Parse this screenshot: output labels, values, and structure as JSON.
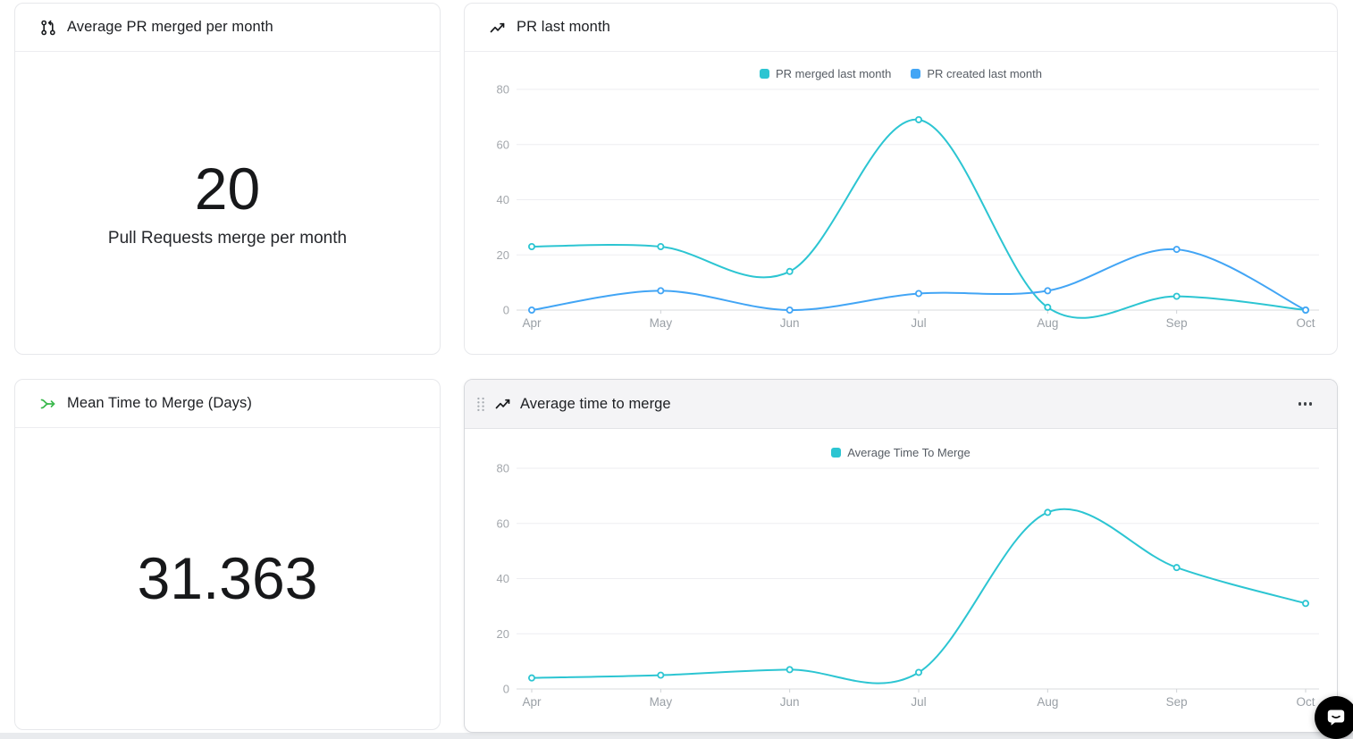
{
  "cards": {
    "avg_pr_merged": {
      "title": "Average PR merged per month",
      "icon": "git-pull-request-icon",
      "value": "20",
      "caption": "Pull Requests merge per month"
    },
    "pr_last_month": {
      "title": "PR last month",
      "icon": "trending-line-icon"
    },
    "mean_time_to_merge": {
      "title": "Mean Time to Merge (Days)",
      "icon": "merge-arrow-icon",
      "icon_color": "#3cb94e",
      "value": "31.363"
    },
    "average_time_to_merge": {
      "title": "Average time to merge",
      "icon": "trending-line-icon",
      "drag_handle": "drag-handle-dots-icon",
      "menu": "ellipsis-menu-icon"
    }
  },
  "chart_data": [
    {
      "type": "line",
      "title": "PR last month",
      "categories": [
        "Apr",
        "May",
        "Jun",
        "Jul",
        "Aug",
        "Sep",
        "Oct"
      ],
      "series": [
        {
          "name": "PR merged last month",
          "color": "#2cc5d2",
          "values": [
            23,
            23,
            14,
            69,
            1,
            5,
            0
          ]
        },
        {
          "name": "PR created last month",
          "color": "#42a5f5",
          "values": [
            0,
            7,
            0,
            6,
            7,
            22,
            0
          ]
        }
      ],
      "ylim": [
        0,
        80
      ],
      "yticks": [
        0,
        20,
        40,
        60,
        80
      ],
      "grid": true,
      "legend_position": "top",
      "smooth": true,
      "point_style": "open-circle"
    },
    {
      "type": "line",
      "title": "Average time to merge",
      "categories": [
        "Apr",
        "May",
        "Jun",
        "Jul",
        "Aug",
        "Sep",
        "Oct"
      ],
      "series": [
        {
          "name": "Average Time To Merge",
          "color": "#2cc5d2",
          "values": [
            4,
            5,
            7,
            6,
            64,
            44,
            31
          ]
        }
      ],
      "ylim": [
        0,
        80
      ],
      "yticks": [
        0,
        20,
        40,
        60,
        80
      ],
      "grid": true,
      "legend_position": "top",
      "smooth": true,
      "point_style": "open-circle"
    }
  ],
  "colors": {
    "teal": "#2cc5d2",
    "blue": "#42a5f5",
    "green": "#3cb94e",
    "grid_line": "#eeeef1",
    "axis_line": "#d9dbde",
    "x_tick": "#cfd2d6",
    "tick_text": "#a3a7ac",
    "card_border": "#e7e8eb",
    "selected_header_bg": "#f4f4f6",
    "chat_bg": "#000000"
  },
  "chat_launcher": {
    "icon": "chat-bubble-smile-icon"
  }
}
